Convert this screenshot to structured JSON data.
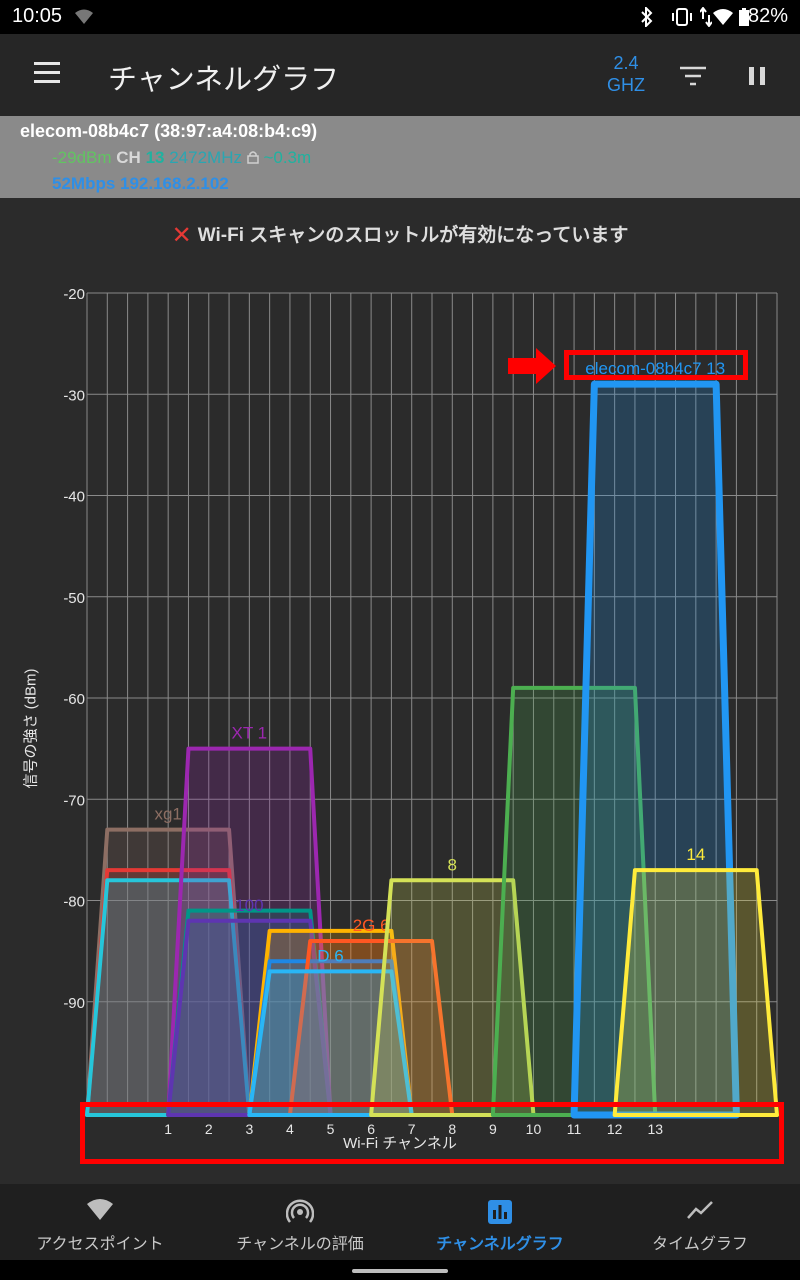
{
  "status": {
    "time": "10:05",
    "battery": "82%"
  },
  "appbar": {
    "title": "チャンネルグラフ",
    "band_line1": "2.4",
    "band_line2": "GHZ"
  },
  "connection": {
    "ssid": "elecom-08b4c7 (38:97:a4:08:b4:c9)",
    "signal": "-29dBm",
    "ch_label": "CH",
    "channel": "13",
    "frequency": "2472MHz",
    "distance": "~0.3m",
    "speed_ip": "52Mbps 192.168.2.102"
  },
  "warning": "Wi-Fi スキャンのスロットルが有効になっています",
  "chart_data": {
    "type": "area",
    "ylabel": "信号の強さ (dBm)",
    "xlabel": "Wi-Fi チャンネル",
    "y_ticks": [
      "-20",
      "-30",
      "-40",
      "-50",
      "-60",
      "-70",
      "-80",
      "-90"
    ],
    "ylim": [
      -100,
      -20
    ],
    "x_ticks": [
      "1",
      "2",
      "3",
      "4",
      "5",
      "6",
      "7",
      "8",
      "9",
      "10",
      "11",
      "12",
      "13"
    ],
    "xlim": [
      -1,
      16
    ],
    "grid": true,
    "networks": [
      {
        "label": "xg1",
        "channel": 1,
        "dbm": -73,
        "color": "#8d6e63"
      },
      {
        "label": "",
        "channel": 1,
        "dbm": -77,
        "color": "#e53935"
      },
      {
        "label": "",
        "channel": 1,
        "dbm": -78,
        "color": "#26c6da"
      },
      {
        "label": "XT 1",
        "channel": 3,
        "dbm": -65,
        "color": "#9c27b0"
      },
      {
        "label": "",
        "channel": 3,
        "dbm": -81,
        "color": "#009688"
      },
      {
        "label": "100",
        "channel": 3,
        "dbm": -82,
        "color": "#5e35b1"
      },
      {
        "label": "",
        "channel": 5,
        "dbm": -83,
        "color": "#ffb300"
      },
      {
        "label": "",
        "channel": 5,
        "dbm": -86,
        "color": "#1e88e5"
      },
      {
        "label": "2G 6",
        "channel": 6,
        "dbm": -84,
        "color": "#ff5722"
      },
      {
        "label": "D 6",
        "channel": 5,
        "dbm": -87,
        "color": "#29b6f6"
      },
      {
        "label": "8",
        "channel": 8,
        "dbm": -78,
        "color": "#d4e157"
      },
      {
        "label": "",
        "channel": 11,
        "dbm": -59,
        "color": "#4caf50"
      },
      {
        "label": "elecom-08b4c7 13",
        "channel": 13,
        "dbm": -29,
        "color": "#2196f3"
      },
      {
        "label": "14",
        "channel": 14,
        "dbm": -77,
        "color": "#ffeb3b"
      }
    ]
  },
  "nav": [
    {
      "label": "アクセスポイント",
      "icon": "wifi-icon"
    },
    {
      "label": "チャンネルの評価",
      "icon": "antenna-icon"
    },
    {
      "label": "チャンネルグラフ",
      "icon": "bar-chart-icon"
    },
    {
      "label": "タイムグラフ",
      "icon": "trend-icon"
    }
  ]
}
